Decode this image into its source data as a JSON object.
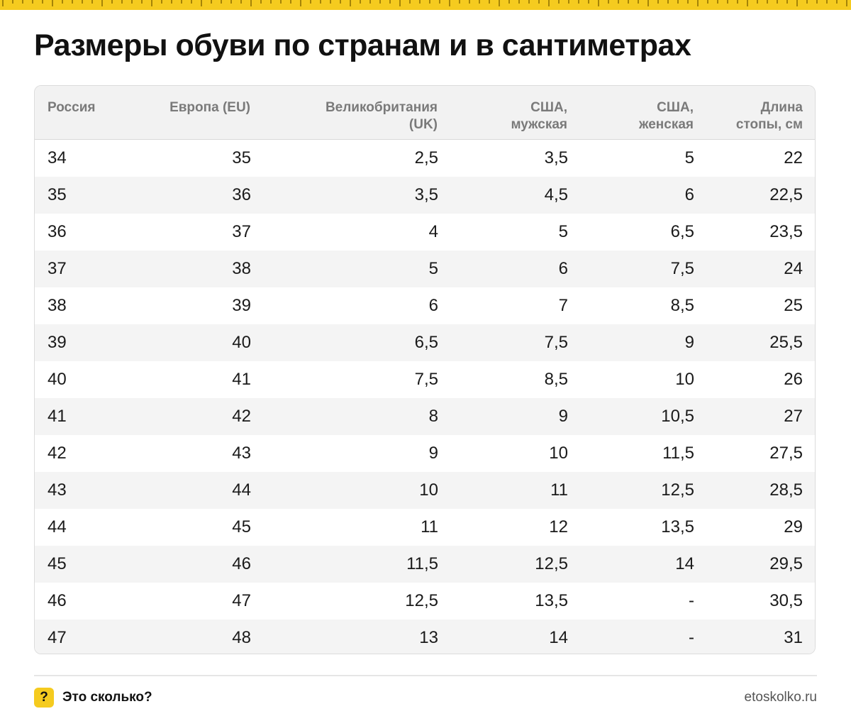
{
  "title": "Размеры обуви по странам и в сантиметрах",
  "colors": {
    "accent": "#f5cb1f",
    "header_bg": "#f2f2f2",
    "stripe_bg": "#f4f4f4"
  },
  "table": {
    "headers": [
      {
        "line1": "Россия",
        "line2": ""
      },
      {
        "line1": "Европа (EU)",
        "line2": ""
      },
      {
        "line1": "Великобритания",
        "line2": "(UK)"
      },
      {
        "line1": "США,",
        "line2": "мужская"
      },
      {
        "line1": "США,",
        "line2": "женская"
      },
      {
        "line1": "Длина",
        "line2": "стопы, см"
      }
    ],
    "rows": [
      [
        "34",
        "35",
        "2,5",
        "3,5",
        "5",
        "22"
      ],
      [
        "35",
        "36",
        "3,5",
        "4,5",
        "6",
        "22,5"
      ],
      [
        "36",
        "37",
        "4",
        "5",
        "6,5",
        "23,5"
      ],
      [
        "37",
        "38",
        "5",
        "6",
        "7,5",
        "24"
      ],
      [
        "38",
        "39",
        "6",
        "7",
        "8,5",
        "25"
      ],
      [
        "39",
        "40",
        "6,5",
        "7,5",
        "9",
        "25,5"
      ],
      [
        "40",
        "41",
        "7,5",
        "8,5",
        "10",
        "26"
      ],
      [
        "41",
        "42",
        "8",
        "9",
        "10,5",
        "27"
      ],
      [
        "42",
        "43",
        "9",
        "10",
        "11,5",
        "27,5"
      ],
      [
        "43",
        "44",
        "10",
        "11",
        "12,5",
        "28,5"
      ],
      [
        "44",
        "45",
        "11",
        "12",
        "13,5",
        "29"
      ],
      [
        "45",
        "46",
        "11,5",
        "12,5",
        "14",
        "29,5"
      ],
      [
        "46",
        "47",
        "12,5",
        "13,5",
        "-",
        "30,5"
      ],
      [
        "47",
        "48",
        "13",
        "14",
        "-",
        "31"
      ]
    ]
  },
  "footer": {
    "badge": "?",
    "brand": "Это сколько?",
    "site": "etoskolko.ru"
  }
}
